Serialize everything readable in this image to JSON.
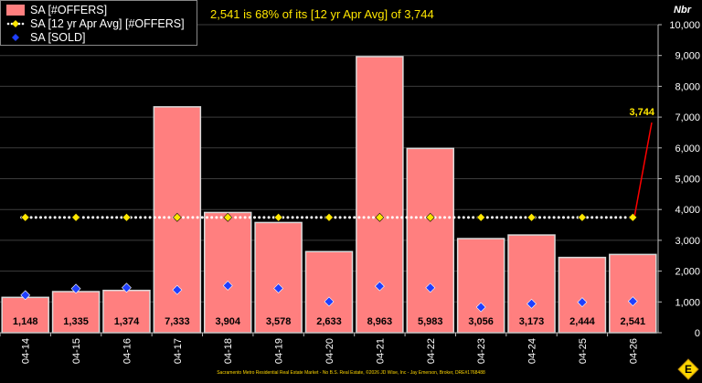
{
  "headline": "2,541 is 68% of its [12 yr Apr Avg] of 3,744",
  "footer": "Sacramento Metro Residential Real Estate Market - No B.S. Real Estate, ©2026 JD Wise, Inc - Jay Emerson, Broker, DRE#1768488",
  "legend": {
    "offers": "SA [#OFFERS]",
    "avg": "SA [12 yr Apr Avg] [#OFFERS]",
    "sold": "SA [SOLD]"
  },
  "colors": {
    "bar": "#ff7f7f",
    "bar_edge": "#d9d9d9",
    "avg_line": "#ffffff",
    "avg_marker": "#ffe600",
    "sold_marker": "#1f3fff",
    "callout_line": "#ff0000",
    "callout_text": "#ffe600"
  },
  "chart_data": {
    "type": "bar",
    "categories": [
      "04-14",
      "04-15",
      "04-16",
      "04-17",
      "04-18",
      "04-19",
      "04-20",
      "04-21",
      "04-22",
      "04-23",
      "04-24",
      "04-25",
      "04-26"
    ],
    "series": [
      {
        "name": "SA [#OFFERS]",
        "type": "bar",
        "values": [
          1148,
          1335,
          1374,
          7333,
          3904,
          3578,
          2633,
          8963,
          5983,
          3056,
          3173,
          2444,
          2541
        ],
        "data_labels": [
          "1,148",
          "1,335",
          "1,374",
          "7,333",
          "3,904",
          "3,578",
          "2,633",
          "8,963",
          "5,983",
          "3,056",
          "3,173",
          "2,444",
          "2,541"
        ]
      },
      {
        "name": "SA [12 yr Apr Avg] [#OFFERS]",
        "type": "line",
        "values": [
          3744,
          3744,
          3744,
          3744,
          3744,
          3744,
          3744,
          3744,
          3744,
          3744,
          3744,
          3744,
          3744
        ]
      },
      {
        "name": "SA [SOLD]",
        "type": "scatter",
        "values": [
          1220,
          1430,
          1460,
          1390,
          1530,
          1440,
          1010,
          1510,
          1460,
          830,
          940,
          990,
          1020
        ]
      }
    ],
    "callout": {
      "label": "3,744",
      "value": 3744
    },
    "ylabel": "Nbr",
    "ylim": [
      0,
      10000
    ],
    "yticks": [
      0,
      1000,
      2000,
      3000,
      4000,
      5000,
      6000,
      7000,
      8000,
      9000,
      10000
    ],
    "ytick_labels": [
      "0",
      "1,000",
      "2,000",
      "3,000",
      "4,000",
      "5,000",
      "6,000",
      "7,000",
      "8,000",
      "9,000",
      "10,000"
    ],
    "grid": true,
    "legend_position": "top-left"
  }
}
